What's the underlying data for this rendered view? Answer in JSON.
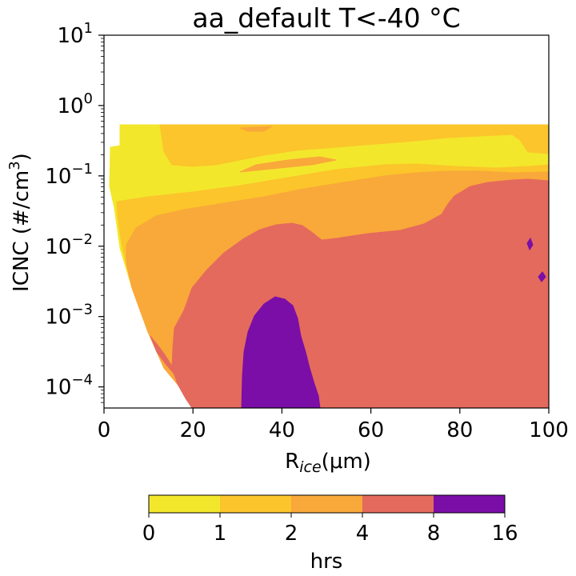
{
  "chart_data": {
    "type": "heatmap",
    "subtype": "filled-contour",
    "title": "aa_default T<-40 °C",
    "xlabel": {
      "base": "R",
      "sub": "ice",
      "suffix": "(μm)"
    },
    "ylabel": {
      "prefix": "ICNC (#/cm",
      "sup": "3",
      "suffix": ")"
    },
    "xlim": [
      0,
      100
    ],
    "ylim_log10": [
      -4.3,
      1
    ],
    "y_scale": "log",
    "x_ticks": [
      "0",
      "20",
      "40",
      "60",
      "80",
      "100"
    ],
    "y_ticks": [
      {
        "base": "10",
        "exp": "1"
      },
      {
        "base": "10",
        "exp": "0"
      },
      {
        "base": "10",
        "exp": "−1"
      },
      {
        "base": "10",
        "exp": "−2"
      },
      {
        "base": "10",
        "exp": "−3"
      },
      {
        "base": "10",
        "exp": "−4"
      }
    ],
    "colorbar": {
      "label": "hrs",
      "placement": "bottom",
      "bounds": [
        "0",
        "1",
        "2",
        "4",
        "8",
        "16"
      ],
      "colors": [
        "#f3e72c",
        "#fbc52b",
        "#f9a83a",
        "#e46a5d",
        "#7a0ea7"
      ]
    },
    "levels": [
      {
        "range": "0-1 hrs",
        "color": "#f3e72c",
        "region": "upper band near ICNC 1e-1 and small-radius edge"
      },
      {
        "range": "1-2 hrs",
        "color": "#fbc52b",
        "region": "band near ICNC 0.5 and right edge near 0.1"
      },
      {
        "range": "2-4 hrs",
        "color": "#f9a83a",
        "region": "intermediate band along ICNC 1e-2 to 1e-1 and left edge"
      },
      {
        "range": "4-8 hrs",
        "color": "#e46a5d",
        "region": "lower-right area, R 20-100 μm, ICNC below 1e-2"
      },
      {
        "range": "8-16 hrs",
        "color": "#7a0ea7",
        "region": "column around R 30-48 μm, ICNC 5e-5 to 2e-3"
      }
    ],
    "grid": false
  }
}
